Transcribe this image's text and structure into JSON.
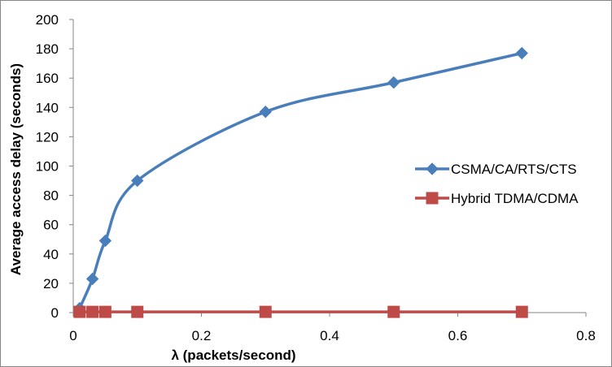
{
  "chart_data": {
    "type": "line",
    "title": "",
    "xlabel": "λ (packets/second)",
    "ylabel": "Average access delay (seconds)",
    "xlim": [
      0,
      0.8
    ],
    "ylim": [
      0,
      200
    ],
    "xticks": [
      "0",
      "0.2",
      "0.4",
      "0.6",
      "0.8"
    ],
    "yticks": [
      "0",
      "20",
      "40",
      "60",
      "80",
      "100",
      "120",
      "140",
      "160",
      "180",
      "200"
    ],
    "grid": false,
    "legend_position": "right",
    "series": [
      {
        "name": "CSMA/CA/RTS/CTS",
        "color": "#4a7ebb",
        "marker": "diamond",
        "x": [
          0.01,
          0.03,
          0.05,
          0.1,
          0.3,
          0.5,
          0.7
        ],
        "y": [
          3,
          23,
          49,
          90,
          137,
          157,
          177
        ]
      },
      {
        "name": "Hybrid TDMA/CDMA",
        "color": "#be4b48",
        "marker": "square",
        "x": [
          0.01,
          0.03,
          0.05,
          0.1,
          0.3,
          0.5,
          0.7
        ],
        "y": [
          0.5,
          0.5,
          0.5,
          0.5,
          0.5,
          0.5,
          0.5
        ]
      }
    ]
  }
}
